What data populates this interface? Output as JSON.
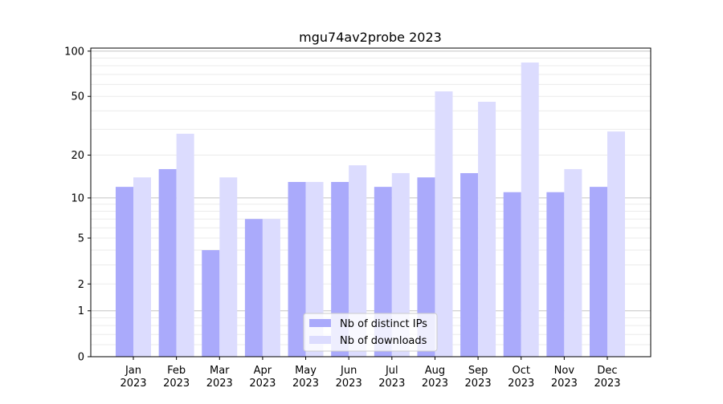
{
  "chart_data": {
    "type": "bar",
    "title": "mgu74av2probe 2023",
    "xlabel": "",
    "ylabel": "",
    "yscale": "log(1+y)",
    "ylim": [
      0,
      105
    ],
    "yticks": [
      0,
      1,
      2,
      5,
      10,
      20,
      50,
      100
    ],
    "grid": true,
    "legend_position": "bottom-center",
    "categories": [
      "Jan\n2023",
      "Feb\n2023",
      "Mar\n2023",
      "Apr\n2023",
      "May\n2023",
      "Jun\n2023",
      "Jul\n2023",
      "Aug\n2023",
      "Sep\n2023",
      "Oct\n2023",
      "Nov\n2023",
      "Dec\n2023"
    ],
    "series": [
      {
        "name": "Nb of distinct IPs",
        "color": "#aaaafb",
        "values": [
          12,
          16,
          4,
          7,
          13,
          13,
          12,
          14,
          15,
          11,
          11,
          12
        ]
      },
      {
        "name": "Nb of downloads",
        "color": "#dcdcfe",
        "values": [
          14,
          28,
          14,
          7,
          13,
          17,
          15,
          54,
          46,
          84,
          16,
          29
        ]
      }
    ]
  }
}
